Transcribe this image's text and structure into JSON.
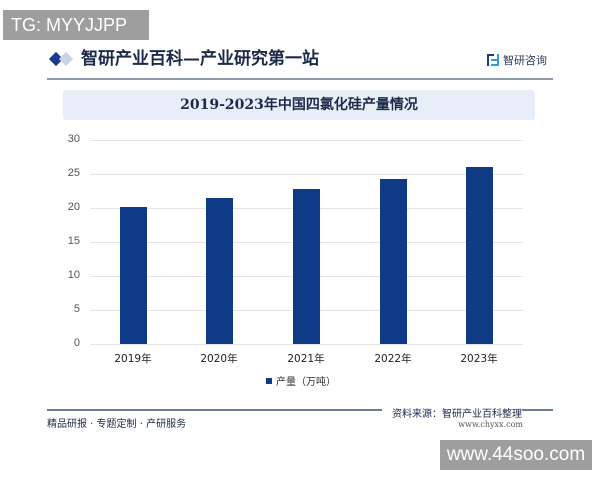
{
  "overlay": {
    "tg_label": "TG: MYYJJPP",
    "watermark_url": "www.44soo.com"
  },
  "header": {
    "title": "智研产业百科—产业研究第一站",
    "brand": "智研咨询"
  },
  "chart_banner": {
    "title": "2019-2023年中国四氯化硅产量情况"
  },
  "colors": {
    "bar": "#0f3a85",
    "accent": "#1a3a8c",
    "banner_bg": "#e8eef7"
  },
  "chart_data": {
    "type": "bar",
    "title": "2019-2023年中国四氯化硅产量情况",
    "categories": [
      "2019年",
      "2020年",
      "2021年",
      "2022年",
      "2023年"
    ],
    "series": [
      {
        "name": "产量（万吨）",
        "values": [
          20.2,
          21.4,
          22.8,
          24.3,
          26.0
        ]
      }
    ],
    "xlabel": "",
    "ylabel": "",
    "ylim": [
      0,
      30
    ],
    "yticks": [
      0,
      5,
      10,
      15,
      20,
      25,
      30
    ],
    "grid": true,
    "legend_position": "bottom"
  },
  "legend": {
    "label": "产量（万吨）"
  },
  "footer": {
    "left": "精品研报 · 专题定制 · 产研服务",
    "source": "资料来源：智研产业百科整理",
    "url": "www.chyxx.com"
  }
}
